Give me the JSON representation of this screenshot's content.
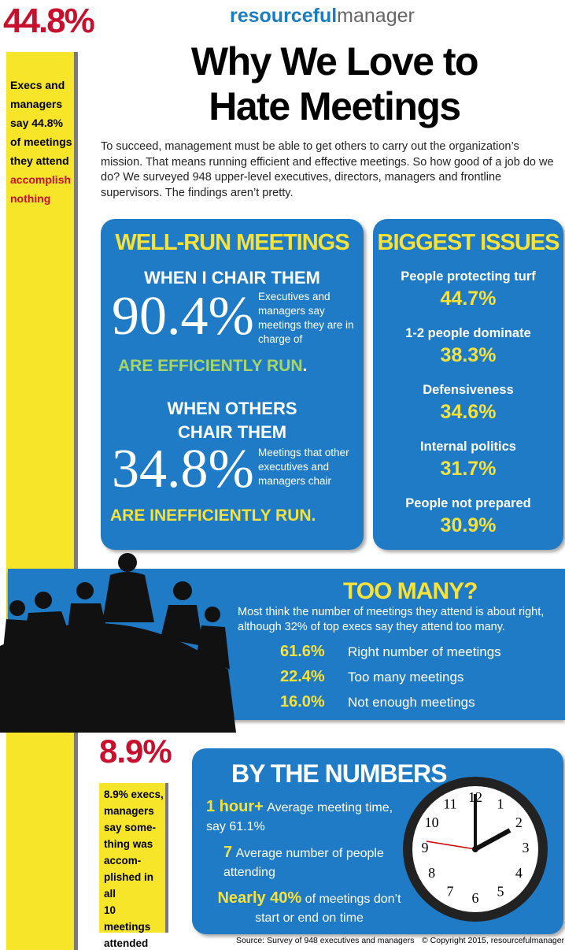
{
  "sidebar": {
    "stat": "44.8%",
    "text": "Execs and managers say 44.8% of meetings they attend",
    "highlight": "accomplish nothing"
  },
  "header": {
    "brand_part1": "resourceful",
    "brand_part2": "manager",
    "title": "Why We Love to Hate Meetings",
    "intro": "To succeed, management must be able to get others to carry out the organization’s mission. That means running efficient and effective meetings. So how good of a job do we do? We surveyed 948 upper-level executives, directors, managers and frontline supervisors. The findings aren’t pretty."
  },
  "well_run": {
    "heading": "WELL-RUN MEETINGS",
    "own": {
      "subheading": "WHEN I CHAIR THEM",
      "stat": "90.4%",
      "text": "Executives and managers say meetings they are in charge of",
      "result": "ARE EFFICIENTLY RUN",
      "period": "."
    },
    "others": {
      "subheading": "WHEN OTHERS CHAIR THEM",
      "stat": "34.8%",
      "text": "Meetings that other executives and managers chair",
      "result": "ARE INEFFICIENTLY RUN."
    }
  },
  "issues": {
    "heading": "BIGGEST ISSUES",
    "items": [
      {
        "label": "People protecting turf",
        "value": "44.7%"
      },
      {
        "label": "1-2 people dominate",
        "value": "38.3%"
      },
      {
        "label": "Defensiveness",
        "value": "34.6%"
      },
      {
        "label": "Internal politics",
        "value": "31.7%"
      },
      {
        "label": "People not prepared",
        "value": "30.9%"
      }
    ]
  },
  "too_many": {
    "heading": "TOO MANY?",
    "text": "Most think the number of meetings they attend is about right, although 32% of top execs say they attend too many.",
    "items": [
      {
        "value": "61.6%",
        "label": "Right number of meetings"
      },
      {
        "value": "22.4%",
        "label": "Too many meetings"
      },
      {
        "value": "16.0%",
        "label": "Not enough meetings"
      }
    ]
  },
  "accomplished": {
    "stat": "8.9%",
    "lines": [
      "8.9% execs,",
      "managers",
      "say some-",
      "thing was",
      "accom-",
      "plished in all",
      "10 meetings",
      "attended"
    ]
  },
  "by_numbers": {
    "heading": "BY THE NUMBERS",
    "items": [
      {
        "value": "1 hour+",
        "text": "Average meeting time, say 61.1%"
      },
      {
        "value": "7",
        "text": "Average number of people attending"
      },
      {
        "value": "Nearly 40%",
        "text": "of meetings don’t start or end on time"
      }
    ],
    "clock_numbers": [
      "12",
      "1",
      "2",
      "3",
      "4",
      "5",
      "6",
      "7",
      "8",
      "9",
      "10",
      "11"
    ]
  },
  "footer": {
    "source": "Source: Survey of 948 executives and managers",
    "copyright": "© Copyright 2015, resourcefulmanager"
  }
}
